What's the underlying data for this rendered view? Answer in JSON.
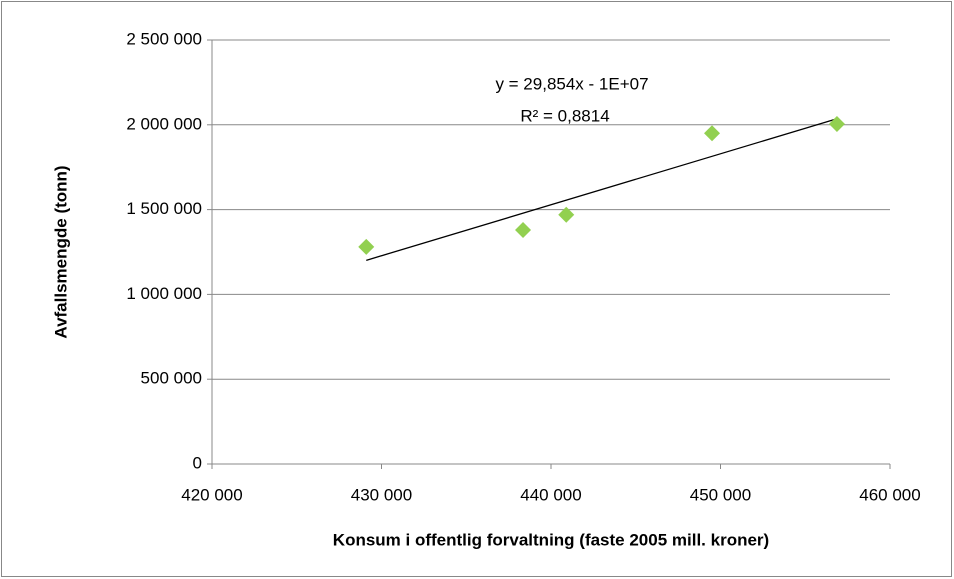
{
  "chart_data": {
    "type": "scatter",
    "xlabel": "Konsum i offentlig forvaltning (faste 2005 mill. kroner)",
    "ylabel": "Avfallsmengde (tonn)",
    "annotations": [
      "y = 29,854x - 1E+07",
      "R² = 0,8814"
    ],
    "trendline": true,
    "grid": true,
    "series": [
      {
        "color": "#92d050",
        "x": [
          429100,
          438350,
          440900,
          449500,
          456870
        ],
        "values": [
          1280000,
          1380000,
          1470000,
          1950000,
          2005000
        ]
      }
    ],
    "xlim": [
      420000,
      460000
    ],
    "xticks": [
      {
        "value": 420000,
        "label": "420 000"
      },
      {
        "value": 430000,
        "label": "430 000"
      },
      {
        "value": 440000,
        "label": "440 000"
      },
      {
        "value": 450000,
        "label": "450 000"
      },
      {
        "value": 460000,
        "label": "460 000"
      }
    ],
    "ylim": [
      0,
      2500000
    ],
    "yticks": [
      0,
      {
        "value": 500000,
        "label": "500 000"
      },
      {
        "value": 1000000,
        "label": "1 000 000"
      },
      {
        "value": 1500000,
        "label": "1 500 000"
      },
      {
        "value": 2000000,
        "label": "2 000 000"
      },
      {
        "value": 2500000,
        "label": "2 500 000"
      }
    ]
  }
}
